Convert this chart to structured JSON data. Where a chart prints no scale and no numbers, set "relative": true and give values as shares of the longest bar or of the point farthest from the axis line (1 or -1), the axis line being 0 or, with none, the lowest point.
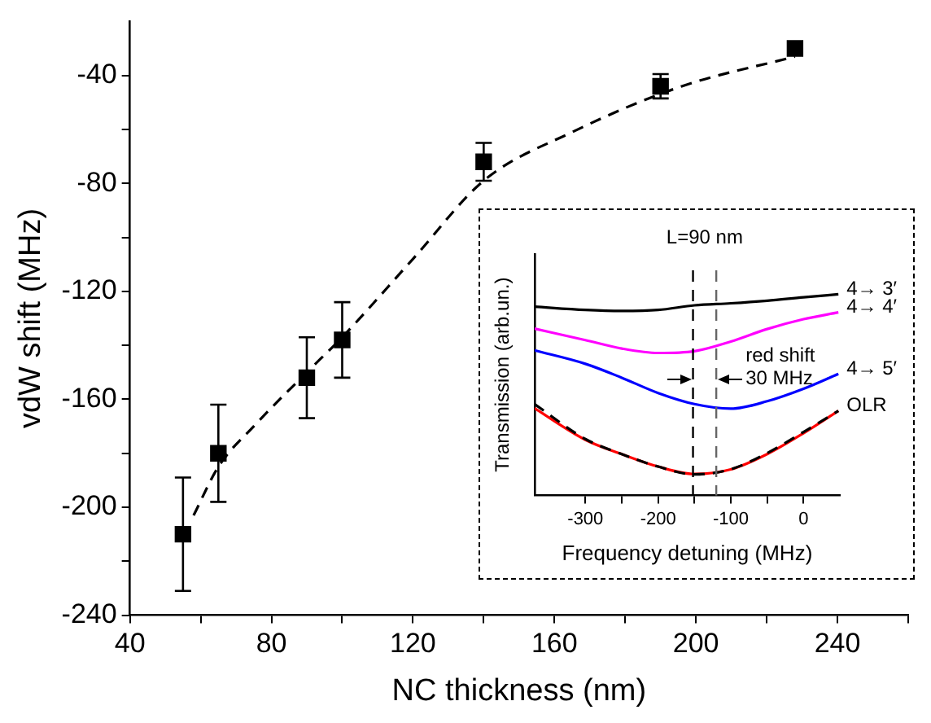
{
  "chart_data": [
    {
      "type": "scatter",
      "xlabel": "NC thickness (nm)",
      "ylabel": "vdW shift (MHz)",
      "xlim": [
        40,
        260
      ],
      "xticks": [
        40,
        {
          "value": 60,
          "label": null
        },
        80,
        {
          "value": 100,
          "label": null
        },
        120,
        {
          "value": 140,
          "label": null
        },
        160,
        {
          "value": 180,
          "label": null
        },
        200,
        {
          "value": 220,
          "label": null
        },
        240,
        {
          "value": 260,
          "label": null
        }
      ],
      "ylim": [
        -240,
        -20
      ],
      "yticks": [
        -240,
        {
          "value": -220,
          "label": null
        },
        -200,
        {
          "value": -180,
          "label": null
        },
        -160,
        {
          "value": -140,
          "label": null
        },
        -120,
        {
          "value": -100,
          "label": null
        },
        -80,
        {
          "value": -60,
          "label": null
        },
        -40
      ],
      "grid": false,
      "legend": false,
      "series": [
        {
          "type": "line",
          "color": "#000000",
          "line_style": "dashed",
          "marker": "none",
          "x": [
            58,
            65,
            75,
            90,
            100,
            120,
            140,
            165,
            196,
            228
          ],
          "values": [
            -203,
            -185,
            -170,
            -150,
            -137,
            -108,
            -79,
            -61,
            -44,
            -33
          ]
        },
        {
          "type": "scatter",
          "color": "#000000",
          "marker": "square",
          "x": [
            55,
            65,
            90,
            100,
            140,
            190,
            228
          ],
          "values": [
            -210,
            -180,
            -152,
            -138,
            -72,
            -44,
            -30
          ],
          "errors": [
            21,
            18,
            15,
            14,
            7,
            4.5,
            null
          ]
        }
      ]
    },
    {
      "type": "line",
      "xlabel": "Frequency detuning (MHz)",
      "ylabel": "Transmission (arb.un.)",
      "relative": true,
      "tick_labels": "x",
      "grid": false,
      "legend": false,
      "xlim": [
        -370,
        50
      ],
      "xticks": [
        -300,
        {
          "value": -250,
          "label": null
        },
        -200,
        {
          "value": -150,
          "label": null
        },
        -100,
        {
          "value": -50,
          "label": null
        },
        0
      ],
      "x": [
        -370,
        -300,
        -250,
        -200,
        -150,
        -100,
        -50,
        0,
        48
      ],
      "series": [
        {
          "name": "4→ 3′",
          "color": "#000000",
          "values": [
            0.938,
            0.922,
            0.917,
            0.922,
            0.945,
            0.955,
            0.968,
            0.985,
            1.0
          ]
        },
        {
          "name": "4→ 4′",
          "color": "#ff00ff",
          "values": [
            0.829,
            0.772,
            0.73,
            0.708,
            0.717,
            0.765,
            0.827,
            0.876,
            0.91
          ]
        },
        {
          "name": "4→ 5′",
          "color": "#0000ff",
          "values": [
            0.721,
            0.654,
            0.585,
            0.509,
            0.454,
            0.431,
            0.468,
            0.53,
            0.604
          ]
        },
        {
          "color": "#000000",
          "line_style": "dashed",
          "values": [
            0.454,
            0.28,
            0.205,
            0.143,
            0.104,
            0.13,
            0.21,
            0.315,
            0.42
          ]
        },
        {
          "name": "OLR",
          "color": "#ff0000",
          "values": [
            0.433,
            0.276,
            0.205,
            0.143,
            0.106,
            0.129,
            0.205,
            0.309,
            0.42
          ]
        }
      ],
      "ref_lines": [
        {
          "axis": "x",
          "value": -152,
          "color": "#000000",
          "line_style": "dashed"
        },
        {
          "axis": "x",
          "value": -120,
          "color": "#666666",
          "line_style": "dashed"
        }
      ],
      "annotations": [
        "L=90 nm",
        "red shift 30 MHz"
      ]
    }
  ]
}
